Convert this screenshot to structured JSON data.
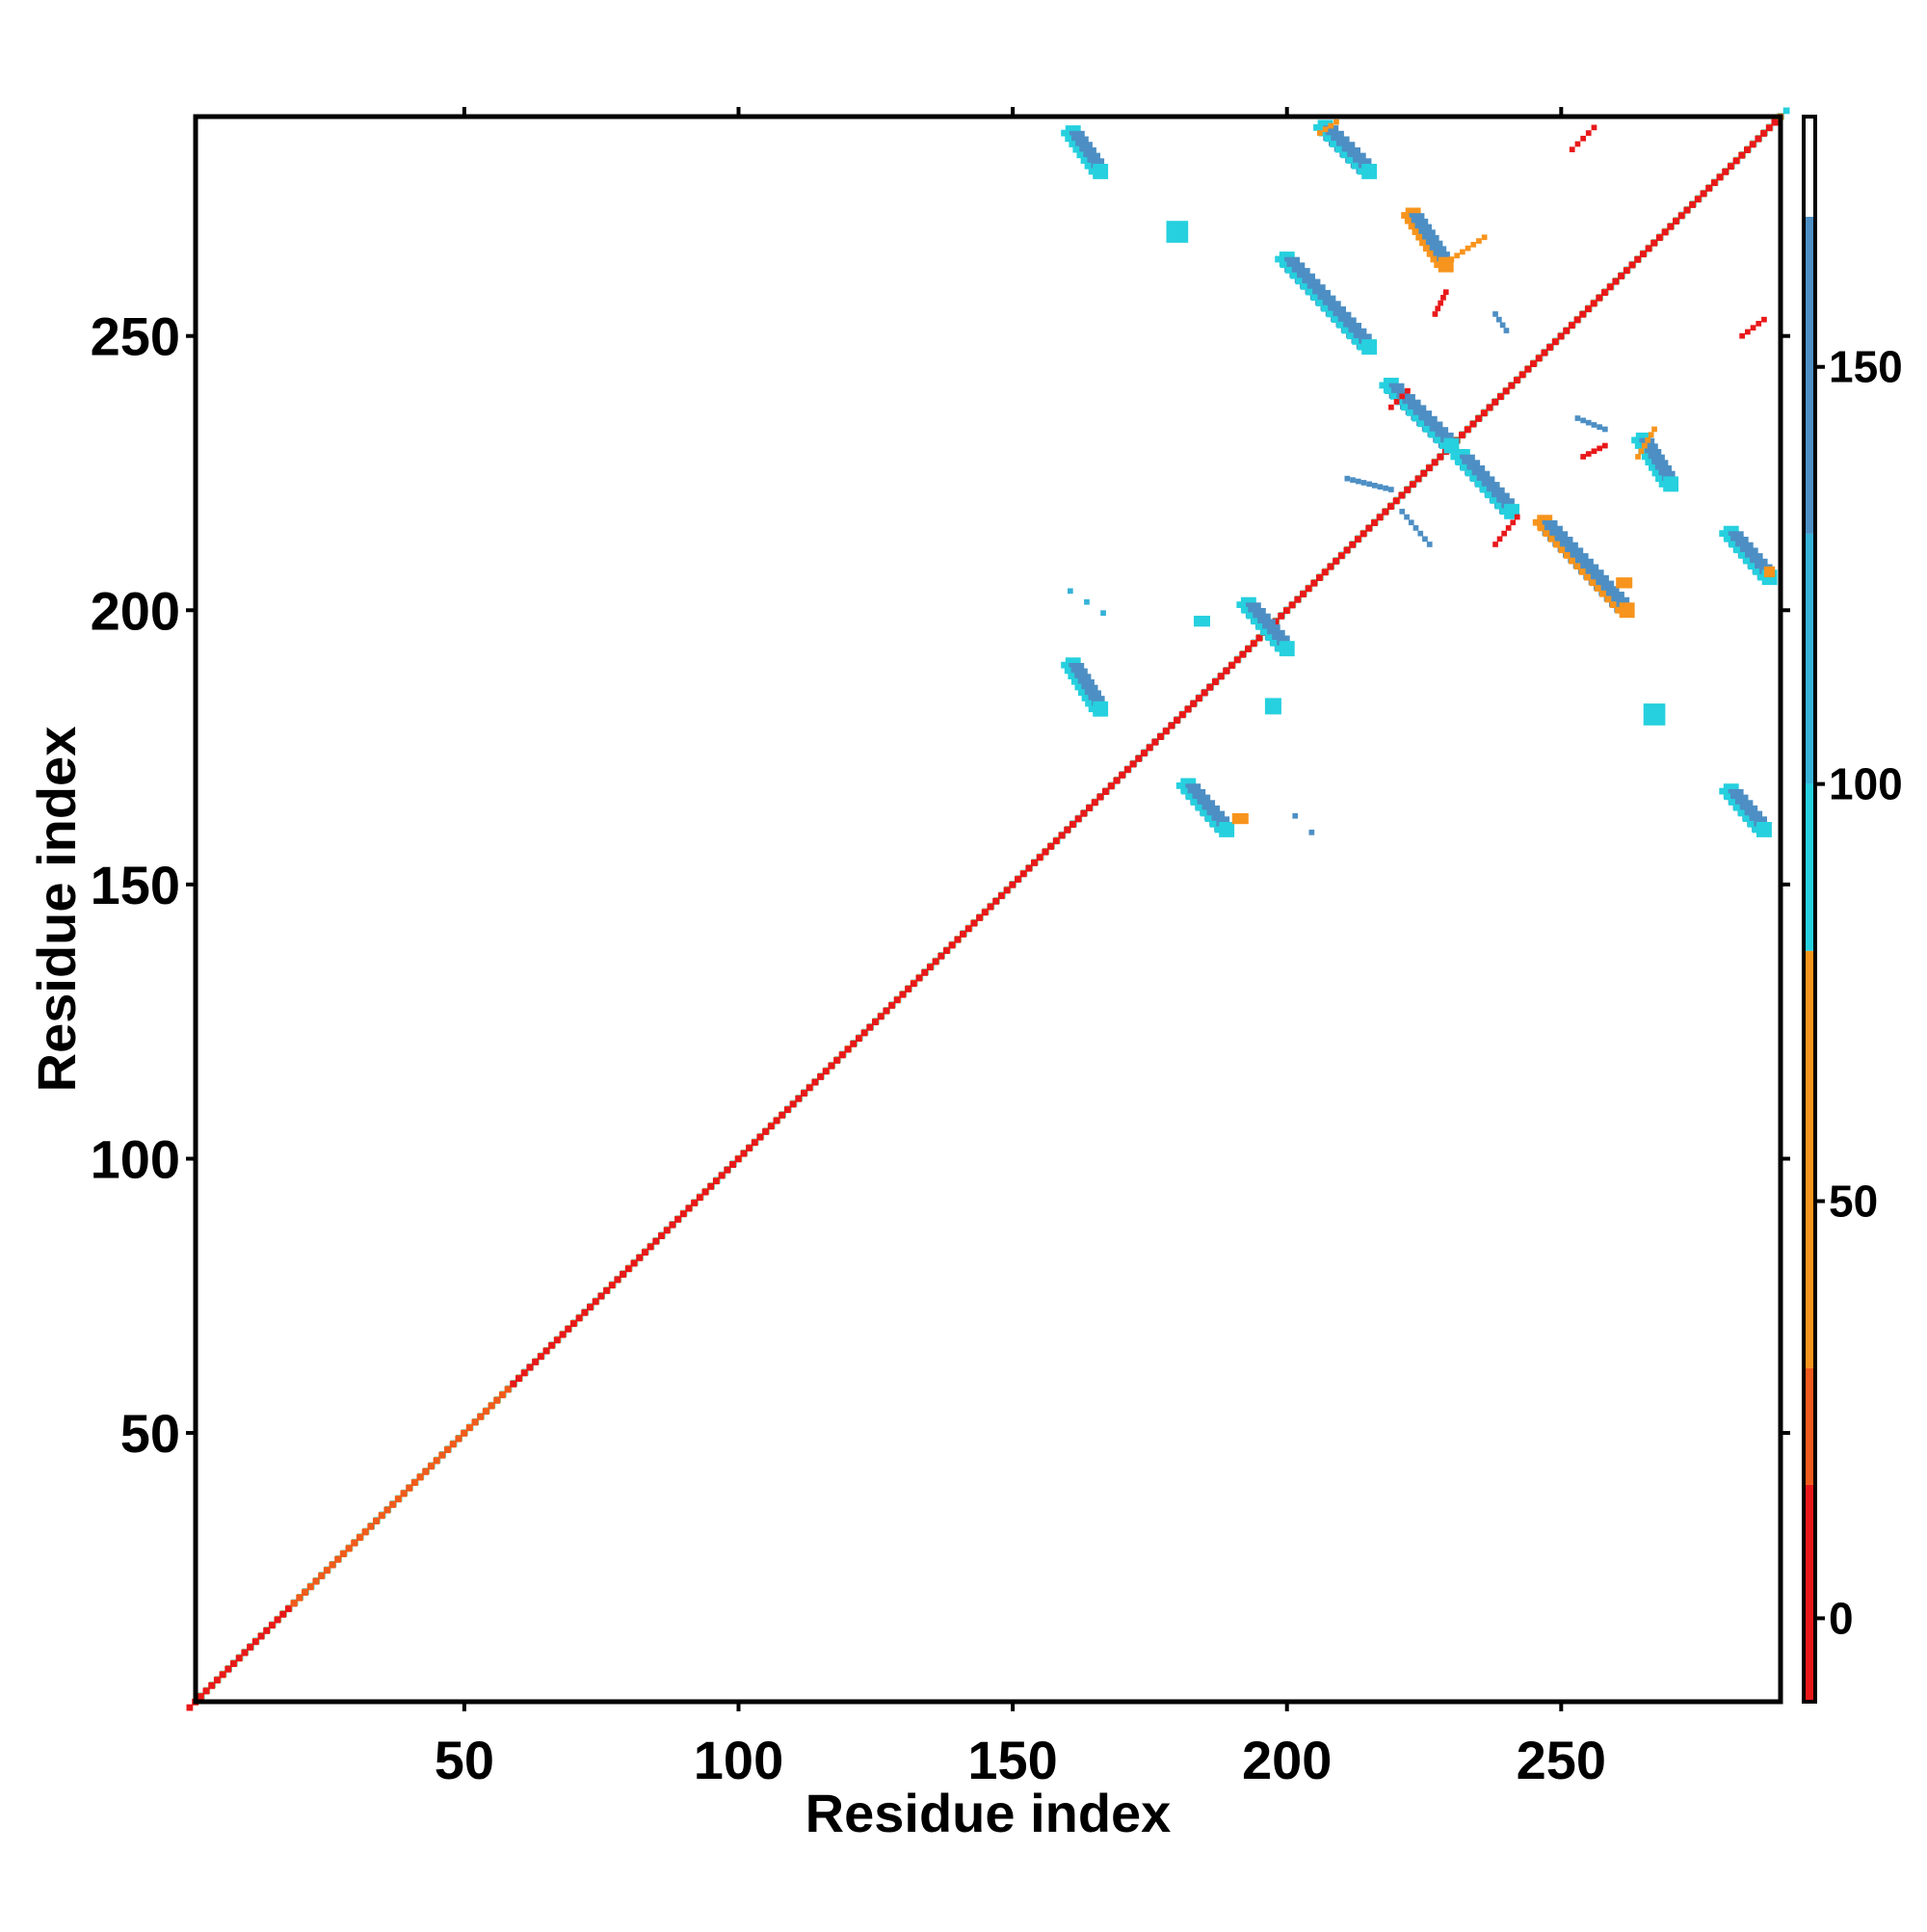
{
  "chart_data": {
    "type": "heatmap",
    "title": "",
    "xlabel": "Residue index",
    "ylabel": "Residue index",
    "xlim": [
      1,
      290
    ],
    "ylim": [
      1,
      290
    ],
    "x_ticks": [
      50,
      100,
      150,
      200,
      250
    ],
    "y_ticks": [
      50,
      100,
      150,
      200,
      250
    ],
    "x_tick_labels": [
      "50",
      "100",
      "150",
      "200",
      "250"
    ],
    "y_tick_labels": [
      "50",
      "100",
      "150",
      "200",
      "250"
    ],
    "colorbar": {
      "range": [
        -10,
        180
      ],
      "ticks": [
        0,
        50,
        100,
        150
      ],
      "tick_labels": [
        "0",
        "50",
        "100",
        "150"
      ],
      "bins": [
        {
          "from": -10,
          "to": 16,
          "color": "#e8181a"
        },
        {
          "from": 16,
          "to": 30,
          "color": "#f05a1c"
        },
        {
          "from": 30,
          "to": 80,
          "color": "#f7941d"
        },
        {
          "from": 80,
          "to": 100,
          "color": "#26d0de"
        },
        {
          "from": 100,
          "to": 130,
          "color": "#35b2d8"
        },
        {
          "from": 130,
          "to": 168,
          "color": "#4d8fc4"
        },
        {
          "from": 168,
          "to": 180,
          "color": "#ffffff"
        }
      ]
    },
    "diagonal_band": {
      "from": 1,
      "to": 290,
      "color_segments": [
        {
          "from": 1,
          "to": 20,
          "colors": [
            "#e8181a",
            "#f7941d",
            "#26d0de"
          ]
        },
        {
          "from": 20,
          "to": 40,
          "colors": [
            "#f05a1c",
            "#f7941d",
            "#26d0de"
          ]
        },
        {
          "from": 40,
          "to": 60,
          "colors": [
            "#f05a1c",
            "#f7941d",
            "#26d0de"
          ]
        },
        {
          "from": 60,
          "to": 80,
          "colors": [
            "#e8181a",
            "#f7941d",
            "#26d0de"
          ]
        },
        {
          "from": 80,
          "to": 100,
          "colors": [
            "#e8181a",
            "#f7941d",
            "#26d0de"
          ]
        },
        {
          "from": 100,
          "to": 120,
          "colors": [
            "#e8181a",
            "#f7941d",
            "#26d0de"
          ]
        },
        {
          "from": 120,
          "to": 140,
          "colors": [
            "#e8181a",
            "#f7941d",
            "#26d0de"
          ]
        },
        {
          "from": 140,
          "to": 160,
          "colors": [
            "#e8181a",
            "#f7941d",
            "#26d0de"
          ]
        },
        {
          "from": 160,
          "to": 190,
          "colors": [
            "#e8181a",
            "#f05a1c",
            "#26d0de"
          ]
        },
        {
          "from": 190,
          "to": 230,
          "colors": [
            "#e8181a",
            "#f7941d",
            "#26d0de"
          ]
        },
        {
          "from": 230,
          "to": 290,
          "colors": [
            "#e8181a",
            "#f7941d",
            "#26d0de"
          ]
        }
      ]
    },
    "contact_strips": [
      {
        "x": [
          161,
          166
        ],
        "y": [
          287,
          280
        ],
        "color": "#4d8fc4",
        "edge": "#26d0de"
      },
      {
        "x": [
          207,
          215
        ],
        "y": [
          288,
          280
        ],
        "color": "#4d8fc4",
        "edge": "#26d0de"
      },
      {
        "x": [
          223,
          229
        ],
        "y": [
          272,
          263
        ],
        "color": "#4d8fc4",
        "edge": "#f7941d"
      },
      {
        "x": [
          200,
          215
        ],
        "y": [
          264,
          248
        ],
        "color": "#4d8fc4",
        "edge": "#26d0de"
      },
      {
        "x": [
          219,
          230
        ],
        "y": [
          241,
          230
        ],
        "color": "#4d8fc4",
        "edge": "#26d0de"
      },
      {
        "x": [
          232,
          241
        ],
        "y": [
          228,
          218
        ],
        "color": "#4d8fc4",
        "edge": "#26d0de"
      },
      {
        "x": [
          247,
          262
        ],
        "y": [
          216,
          200
        ],
        "color": "#4d8fc4",
        "edge": "#f7941d"
      },
      {
        "x": [
          265,
          270
        ],
        "y": [
          231,
          223
        ],
        "color": "#4d8fc4",
        "edge": "#26d0de"
      },
      {
        "x": [
          281,
          288
        ],
        "y": [
          214,
          206
        ],
        "color": "#4d8fc4",
        "edge": "#26d0de"
      },
      {
        "x": [
          161,
          166
        ],
        "y": [
          190,
          182
        ],
        "color": "#4d8fc4",
        "edge": "#26d0de"
      },
      {
        "x": [
          182,
          189
        ],
        "y": [
          168,
          160
        ],
        "color": "#4d8fc4",
        "edge": "#26d0de"
      },
      {
        "x": [
          193,
          200
        ],
        "y": [
          201,
          193
        ],
        "color": "#4d8fc4",
        "edge": "#26d0de"
      },
      {
        "x": [
          281,
          287
        ],
        "y": [
          167,
          160
        ],
        "color": "#4d8fc4",
        "edge": "#26d0de"
      }
    ],
    "contact_blobs": [
      {
        "x": 178,
        "y": 267,
        "w": 4,
        "h": 4,
        "color": "#26d0de"
      },
      {
        "x": 265,
        "y": 179,
        "w": 4,
        "h": 4,
        "color": "#26d0de"
      },
      {
        "x": 196,
        "y": 181,
        "w": 3,
        "h": 3,
        "color": "#26d0de"
      },
      {
        "x": 183,
        "y": 197,
        "w": 3,
        "h": 2,
        "color": "#26d0de"
      },
      {
        "x": 160,
        "y": 203,
        "w": 1,
        "h": 1,
        "color": "#35b2d8"
      },
      {
        "x": 163,
        "y": 201,
        "w": 1,
        "h": 1,
        "color": "#35b2d8"
      },
      {
        "x": 166,
        "y": 199,
        "w": 1,
        "h": 1,
        "color": "#35b2d8"
      },
      {
        "x": 190,
        "y": 161,
        "w": 3,
        "h": 2,
        "color": "#f7941d"
      },
      {
        "x": 201,
        "y": 162,
        "w": 1,
        "h": 1,
        "color": "#4d8fc4"
      },
      {
        "x": 204,
        "y": 159,
        "w": 1,
        "h": 1,
        "color": "#4d8fc4"
      },
      {
        "x": 260,
        "y": 204,
        "w": 3,
        "h": 2,
        "color": "#f7941d"
      },
      {
        "x": 287,
        "y": 206,
        "w": 2,
        "h": 2,
        "color": "#f7941d"
      }
    ],
    "thin_lines": [
      {
        "x": [
          252,
          256
        ],
        "y": [
          284,
          288
        ],
        "color": "#e8181a"
      },
      {
        "x": [
          219,
          222
        ],
        "y": [
          237,
          240
        ],
        "color": "#e8181a"
      },
      {
        "x": [
          238,
          242
        ],
        "y": [
          212,
          217
        ],
        "color": "#e8181a"
      },
      {
        "x": [
          283,
          287
        ],
        "y": [
          250,
          253
        ],
        "color": "#e8181a"
      },
      {
        "x": [
          264,
          267
        ],
        "y": [
          228,
          233
        ],
        "color": "#f7941d"
      },
      {
        "x": [
          230,
          236
        ],
        "y": [
          264,
          268
        ],
        "color": "#f7941d"
      },
      {
        "x": [
          206,
          209
        ],
        "y": [
          287,
          289
        ],
        "color": "#f7941d"
      },
      {
        "x": [
          227,
          229
        ],
        "y": [
          254,
          258
        ],
        "color": "#e8181a"
      },
      {
        "x": [
          254,
          258
        ],
        "y": [
          228,
          230
        ],
        "color": "#e8181a"
      },
      {
        "x": [
          211,
          219
        ],
        "y": [
          224,
          222
        ],
        "color": "#4d8fc4"
      },
      {
        "x": [
          221,
          226
        ],
        "y": [
          218,
          212
        ],
        "color": "#4d8fc4"
      },
      {
        "x": [
          253,
          258
        ],
        "y": [
          235,
          233
        ],
        "color": "#4d8fc4"
      },
      {
        "x": [
          238,
          240
        ],
        "y": [
          254,
          251
        ],
        "color": "#4d8fc4"
      }
    ]
  }
}
